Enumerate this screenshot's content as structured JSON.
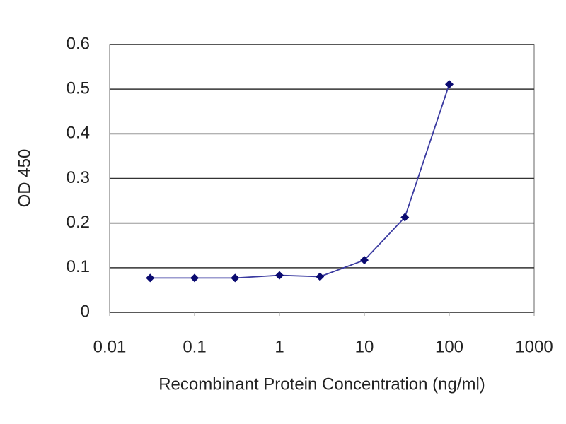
{
  "chart_data": {
    "type": "line",
    "x_label": "Recombinant Protein Concentration (ng/ml)",
    "y_label": "OD 450",
    "x": [
      0.03,
      0.1,
      0.3,
      1,
      3,
      10,
      30,
      100
    ],
    "values": [
      0.077,
      0.077,
      0.077,
      0.083,
      0.08,
      0.117,
      0.213,
      0.511
    ],
    "color": "#3a3aa0",
    "marker_color": "#0a0a70",
    "x_log": true,
    "xlim": [
      0.01,
      1000
    ],
    "xticks": [
      0.01,
      0.1,
      1,
      10,
      100,
      1000
    ],
    "ylim": [
      0,
      0.6
    ],
    "yticks": [
      0,
      0.1,
      0.2,
      0.3,
      0.4,
      0.5,
      0.6
    ],
    "grid": true
  }
}
